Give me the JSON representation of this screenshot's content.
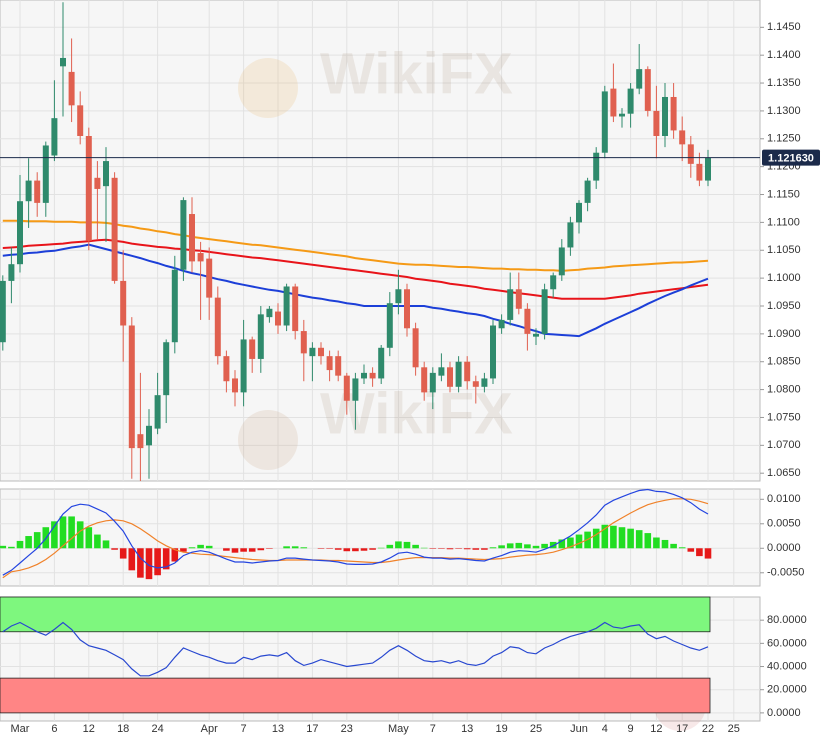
{
  "chart_data": {
    "type": "candlestick",
    "watermark": "WikiFX",
    "categories": [
      null,
      null,
      "Mar",
      null,
      null,
      null,
      "6",
      null,
      null,
      null,
      "12",
      null,
      null,
      null,
      "18",
      null,
      null,
      null,
      "24",
      null,
      null,
      null,
      null,
      null,
      "Apr",
      null,
      null,
      null,
      "7",
      null,
      null,
      null,
      "13",
      null,
      null,
      null,
      "17",
      null,
      null,
      null,
      "23",
      null,
      null,
      null,
      null,
      null,
      "May",
      null,
      null,
      null,
      "7",
      null,
      null,
      null,
      "13",
      null,
      null,
      null,
      "19",
      null,
      null,
      null,
      "25",
      null,
      null,
      null,
      null,
      "Jun",
      null,
      null,
      "4",
      null,
      null,
      "9",
      null,
      null,
      "12",
      null,
      null,
      "17",
      null,
      null,
      "22",
      null,
      null,
      "25"
    ],
    "open": [
      1.0885,
      1.0995,
      1.1025,
      1.1138,
      1.1175,
      1.1135,
      1.122,
      1.138,
      1.137,
      1.131,
      1.1255,
      1.118,
      1.1165,
      1.118,
      1.0995,
      1.0915,
      1.072,
      1.07,
      1.073,
      1.079,
      1.0885,
      1.1015,
      1.1115,
      1.1045,
      1.1035,
      1.0965,
      1.086,
      1.082,
      1.0795,
      1.089,
      1.0855,
      1.093,
      1.094,
      1.0915,
      1.0985,
      1.0905,
      1.086,
      1.0875,
      1.086,
      1.086,
      1.0825,
      1.078,
      1.082,
      1.083,
      1.082,
      1.0875,
      1.0955,
      1.098,
      1.091,
      1.084,
      1.0795,
      1.0825,
      1.084,
      1.0805,
      1.085,
      1.0815,
      1.0805,
      1.082,
      1.091,
      1.0925,
      1.098,
      1.0945,
      1.0895,
      1.09,
      1.098,
      1.1005,
      1.1055,
      1.11,
      1.1135,
      1.1175,
      1.1225,
      1.134,
      1.129,
      1.1295,
      1.134,
      1.1375,
      1.13,
      1.1255,
      1.1325,
      1.1265,
      1.124,
      1.1205,
      1.1175,
      null,
      null,
      null
    ],
    "high": [
      1.1005,
      1.1055,
      1.1185,
      1.1215,
      1.119,
      1.1245,
      1.1355,
      1.1495,
      1.143,
      1.1335,
      1.127,
      1.121,
      1.1235,
      1.119,
      1.105,
      1.093,
      1.083,
      1.0765,
      1.083,
      1.089,
      1.104,
      1.1145,
      1.1145,
      1.1065,
      1.1055,
      1.0985,
      1.087,
      1.0835,
      1.0925,
      1.0895,
      1.095,
      1.095,
      1.0955,
      1.099,
      1.099,
      1.0925,
      1.0885,
      1.0885,
      1.087,
      1.087,
      1.083,
      1.083,
      1.0845,
      1.084,
      1.088,
      1.0975,
      1.1015,
      1.099,
      1.092,
      1.085,
      1.084,
      1.0865,
      1.085,
      1.086,
      1.086,
      1.0825,
      1.083,
      1.0925,
      1.0935,
      1.101,
      1.101,
      1.0955,
      1.091,
      1.099,
      1.101,
      1.107,
      1.111,
      1.114,
      1.118,
      1.1235,
      1.1345,
      1.1385,
      1.1305,
      1.135,
      1.142,
      1.138,
      1.1345,
      1.135,
      1.135,
      1.129,
      1.1255,
      1.1225,
      1.123,
      null,
      null,
      null
    ],
    "low": [
      1.087,
      1.0955,
      1.101,
      1.109,
      1.111,
      1.111,
      1.121,
      1.129,
      1.128,
      1.124,
      1.105,
      1.107,
      1.1065,
      1.099,
      1.085,
      1.064,
      1.0636,
      1.064,
      1.072,
      1.074,
      1.0865,
      1.0995,
      1.101,
      1.0925,
      1.0925,
      1.0845,
      1.0795,
      1.077,
      1.077,
      1.083,
      1.083,
      1.092,
      1.09,
      1.0905,
      1.089,
      1.0815,
      1.0815,
      1.0845,
      1.0815,
      1.0815,
      1.0755,
      1.0728,
      1.081,
      1.0805,
      1.081,
      1.086,
      1.0935,
      1.0895,
      1.0825,
      1.078,
      1.0765,
      1.0815,
      1.0795,
      1.0795,
      1.08,
      1.0775,
      1.0795,
      1.081,
      1.09,
      1.0915,
      1.0935,
      1.087,
      1.088,
      1.089,
      1.0965,
      1.0995,
      1.104,
      1.108,
      1.112,
      1.116,
      1.1215,
      1.128,
      1.127,
      1.127,
      1.133,
      1.129,
      1.1215,
      1.1235,
      1.125,
      1.121,
      1.118,
      1.1165,
      1.1165,
      null,
      null,
      null
    ],
    "close": [
      1.0995,
      1.1025,
      1.1138,
      1.1175,
      1.1135,
      1.1238,
      1.1287,
      1.1395,
      1.131,
      1.1255,
      1.1067,
      1.116,
      1.121,
      1.0995,
      1.0915,
      1.0695,
      1.0695,
      1.0735,
      1.079,
      1.0885,
      1.1015,
      1.114,
      1.103,
      1.103,
      1.0965,
      1.086,
      1.0815,
      1.0795,
      1.089,
      1.0855,
      1.0935,
      1.0945,
      1.0915,
      1.0985,
      1.0905,
      1.0865,
      1.0875,
      1.086,
      1.0835,
      1.0825,
      1.078,
      1.082,
      1.083,
      1.082,
      1.0875,
      1.0955,
      1.098,
      1.091,
      1.084,
      1.0795,
      1.083,
      1.084,
      1.0805,
      1.085,
      1.0815,
      1.0805,
      1.082,
      1.0915,
      1.0925,
      1.098,
      1.0945,
      1.09,
      1.09,
      1.098,
      1.1005,
      1.1055,
      1.11,
      1.1135,
      1.1175,
      1.1225,
      1.1335,
      1.129,
      1.1295,
      1.134,
      1.1375,
      1.13,
      1.1255,
      1.1325,
      1.1265,
      1.124,
      1.1205,
      1.1175,
      1.1216,
      null,
      null,
      null
    ],
    "up_color": "#2f8a6c",
    "down_color": "#e0604f",
    "moving_averages": [
      {
        "color": "#f59a16",
        "values": [
          1.1103,
          1.1103,
          1.1103,
          1.1102,
          1.1102,
          1.1102,
          1.1101,
          1.1101,
          1.1101,
          1.11,
          1.11,
          1.11,
          1.1099,
          1.1097,
          1.1094,
          1.1092,
          1.1089,
          1.1087,
          1.1084,
          1.1082,
          1.1079,
          1.1077,
          1.1074,
          1.1072,
          1.107,
          1.1068,
          1.1066,
          1.1064,
          1.1062,
          1.106,
          1.1059,
          1.1057,
          1.1055,
          1.1053,
          1.1051,
          1.1049,
          1.1047,
          1.1045,
          1.1043,
          1.1041,
          1.1039,
          1.1036,
          1.1034,
          1.1032,
          1.103,
          1.1028,
          1.1026,
          1.1025,
          1.1024,
          1.1024,
          1.1023,
          1.1022,
          1.1021,
          1.102,
          1.102,
          1.1019,
          1.1018,
          1.1017,
          1.1017,
          1.1016,
          1.1016,
          1.1015,
          1.1015,
          1.1014,
          1.1014,
          1.1013,
          1.1014,
          1.1015,
          1.1017,
          1.1018,
          1.1019,
          1.1021,
          1.1022,
          1.1023,
          1.1024,
          1.1025,
          1.1026,
          1.1027,
          1.1028,
          1.1028,
          1.1029,
          1.103,
          1.1031,
          null,
          null,
          null
        ]
      },
      {
        "color": "#e8141a",
        "values": [
          1.1054,
          1.1055,
          1.1056,
          1.1058,
          1.1059,
          1.106,
          1.1061,
          1.1062,
          1.1064,
          1.1065,
          1.1066,
          1.1068,
          1.1069,
          1.1067,
          1.1065,
          1.1062,
          1.106,
          1.1058,
          1.1056,
          1.1055,
          1.1053,
          1.1052,
          1.105,
          1.1049,
          1.1047,
          1.1045,
          1.1043,
          1.1041,
          1.1039,
          1.1037,
          1.1036,
          1.1034,
          1.1032,
          1.103,
          1.1028,
          1.1026,
          1.1024,
          1.1022,
          1.102,
          1.1018,
          1.1016,
          1.1014,
          1.1012,
          1.101,
          1.1008,
          1.1006,
          1.1004,
          1.1002,
          1.0999,
          1.0997,
          1.0995,
          1.0993,
          1.099,
          1.0988,
          1.0986,
          1.0984,
          1.0981,
          1.0979,
          1.0977,
          1.0975,
          1.0973,
          1.0971,
          1.0969,
          1.0967,
          1.0965,
          1.0963,
          1.0963,
          1.0963,
          1.0963,
          1.0963,
          1.0963,
          1.0965,
          1.0967,
          1.0969,
          1.0972,
          1.0974,
          1.0976,
          1.0978,
          1.098,
          1.0982,
          1.0984,
          1.0986,
          1.0988,
          null,
          null,
          null
        ]
      },
      {
        "color": "#1c3fd8",
        "values": [
          1.104,
          1.1042,
          1.1043,
          1.1045,
          1.1046,
          1.1048,
          1.1049,
          1.1052,
          1.1055,
          1.1057,
          1.106,
          1.1056,
          1.1052,
          1.1048,
          1.1044,
          1.104,
          1.1036,
          1.1031,
          1.1027,
          1.1022,
          1.1018,
          1.1013,
          1.1009,
          1.1006,
          1.1002,
          1.0998,
          1.0995,
          1.0991,
          1.0988,
          1.0985,
          1.0982,
          1.0979,
          1.0977,
          1.0974,
          1.0971,
          1.0968,
          1.0965,
          1.0963,
          1.096,
          1.0958,
          1.0955,
          1.0953,
          1.095,
          1.095,
          1.095,
          1.095,
          1.095,
          1.095,
          1.095,
          1.095,
          1.0947,
          1.0945,
          1.0942,
          1.094,
          1.0937,
          1.0935,
          1.0932,
          1.0927,
          1.0923,
          1.0918,
          1.0914,
          1.0909,
          1.0905,
          1.09,
          1.0899,
          1.0898,
          1.0897,
          1.0896,
          1.0903,
          1.091,
          1.0918,
          1.0925,
          1.0932,
          1.0939,
          1.0946,
          1.0954,
          1.0961,
          1.0968,
          1.0974,
          1.098,
          1.0987,
          1.0993,
          1.0999,
          null,
          null,
          null
        ]
      }
    ],
    "last_price": {
      "value": 1.12163,
      "label": "1.121630"
    },
    "last_price_color": "#1b2a4a",
    "ylim": [
      1.0636,
      1.1499
    ],
    "yticks": [
      {
        "value": 1.145,
        "label": "1.1450"
      },
      {
        "value": 1.14,
        "label": "1.1400"
      },
      {
        "value": 1.135,
        "label": "1.1350"
      },
      {
        "value": 1.13,
        "label": "1.1300"
      },
      {
        "value": 1.125,
        "label": "1.1250"
      },
      {
        "value": 1.12,
        "label": "1.1200"
      },
      {
        "value": 1.115,
        "label": "1.1150"
      },
      {
        "value": 1.11,
        "label": "1.1100"
      },
      {
        "value": 1.105,
        "label": "1.1050"
      },
      {
        "value": 1.1,
        "label": "1.1000"
      },
      {
        "value": 1.095,
        "label": "1.0950"
      },
      {
        "value": 1.09,
        "label": "1.0900"
      },
      {
        "value": 1.085,
        "label": "1.0850"
      },
      {
        "value": 1.08,
        "label": "1.0800"
      },
      {
        "value": 1.075,
        "label": "1.0750"
      },
      {
        "value": 1.07,
        "label": "1.0700"
      },
      {
        "value": 1.065,
        "label": "1.0650"
      }
    ],
    "grid": true,
    "macd": {
      "type": "macd",
      "macd_color": "#2445e0",
      "signal_color": "#f0822a",
      "hist_up_color": "#22dd22",
      "hist_down_color": "#e61919",
      "macd": [
        -0.0055,
        -0.0045,
        -0.003,
        -0.0015,
        0.0,
        0.002,
        0.0045,
        0.007,
        0.0085,
        0.009,
        0.0088,
        0.008,
        0.0072,
        0.0055,
        0.0035,
        0.0005,
        -0.002,
        -0.0035,
        -0.004,
        -0.0038,
        -0.003,
        -0.0015,
        -0.0008,
        -0.0005,
        -0.0008,
        -0.0015,
        -0.0022,
        -0.0028,
        -0.0028,
        -0.003,
        -0.0028,
        -0.0026,
        -0.0025,
        -0.002,
        -0.002,
        -0.0022,
        -0.0024,
        -0.0025,
        -0.0026,
        -0.0028,
        -0.0032,
        -0.0033,
        -0.0033,
        -0.0032,
        -0.0028,
        -0.002,
        -0.001,
        -0.0008,
        -0.0012,
        -0.0018,
        -0.002,
        -0.002,
        -0.0022,
        -0.0021,
        -0.0023,
        -0.0025,
        -0.0026,
        -0.002,
        -0.0015,
        -0.0008,
        -0.0005,
        -0.0006,
        -0.0008,
        -0.0002,
        0.0005,
        0.0015,
        0.0025,
        0.0038,
        0.0052,
        0.0068,
        0.0088,
        0.0098,
        0.0105,
        0.0112,
        0.0118,
        0.012,
        0.0116,
        0.0115,
        0.011,
        0.0103,
        0.0093,
        0.008,
        0.007,
        null,
        null,
        null
      ],
      "signal": [
        -0.006,
        -0.0048,
        -0.0045,
        -0.004,
        -0.0033,
        -0.0023,
        -0.001,
        0.0005,
        0.002,
        0.0035,
        0.0045,
        0.0052,
        0.0056,
        0.0058,
        0.0056,
        0.005,
        0.004,
        0.0028,
        0.0015,
        0.0005,
        -0.0003,
        -0.0008,
        -0.001,
        -0.0012,
        -0.0013,
        -0.0015,
        -0.0017,
        -0.0019,
        -0.0021,
        -0.0023,
        -0.0024,
        -0.0025,
        -0.0025,
        -0.0024,
        -0.0024,
        -0.0024,
        -0.0024,
        -0.0024,
        -0.0025,
        -0.0025,
        -0.0026,
        -0.0027,
        -0.0028,
        -0.0029,
        -0.0029,
        -0.0027,
        -0.0024,
        -0.0021,
        -0.0019,
        -0.0019,
        -0.0019,
        -0.0019,
        -0.002,
        -0.002,
        -0.0021,
        -0.0022,
        -0.0023,
        -0.0022,
        -0.0021,
        -0.0018,
        -0.0016,
        -0.0014,
        -0.0013,
        -0.0011,
        -0.0008,
        -0.0003,
        0.0003,
        0.001,
        0.0018,
        0.0028,
        0.004,
        0.0052,
        0.0062,
        0.0072,
        0.0081,
        0.0089,
        0.0094,
        0.0098,
        0.0101,
        0.0101,
        0.01,
        0.0096,
        0.0091,
        null,
        null,
        null
      ],
      "histogram": [
        0.0005,
        0.0003,
        0.0015,
        0.0025,
        0.0033,
        0.0043,
        0.0055,
        0.0065,
        0.0065,
        0.0055,
        0.0043,
        0.0028,
        0.0016,
        -0.0003,
        -0.0021,
        -0.0045,
        -0.006,
        -0.0063,
        -0.0055,
        -0.0043,
        -0.0027,
        -0.0007,
        0.0002,
        0.0007,
        0.0005,
        0.0,
        -0.0005,
        -0.0009,
        -0.0007,
        -0.0007,
        -0.0004,
        -0.0001,
        0.0,
        0.0004,
        0.0004,
        0.0002,
        0.0,
        -0.0001,
        -0.0001,
        -0.0003,
        -0.0006,
        -0.0006,
        -0.0005,
        -0.0003,
        0.0001,
        0.0007,
        0.0014,
        0.0013,
        0.0007,
        0.0001,
        -0.0001,
        -0.0001,
        -0.0002,
        -0.0001,
        -0.0002,
        -0.0003,
        -0.0003,
        0.0002,
        0.0006,
        0.001,
        0.0011,
        0.0008,
        0.0005,
        0.0009,
        0.0013,
        0.0018,
        0.0022,
        0.0028,
        0.0034,
        0.004,
        0.0048,
        0.0046,
        0.0043,
        0.004,
        0.0037,
        0.0031,
        0.0022,
        0.0017,
        0.0009,
        0.0002,
        -0.0007,
        -0.0016,
        -0.0021,
        null,
        null,
        null
      ],
      "ylim": [
        -0.0077,
        0.0121
      ],
      "yticks": [
        {
          "value": 0.01,
          "label": "0.0100"
        },
        {
          "value": 0.005,
          "label": "0.0050"
        },
        {
          "value": 0,
          "label": "0.0000"
        },
        {
          "value": -0.005,
          "label": "-0.0050"
        }
      ]
    },
    "rsi": {
      "type": "line",
      "color": "#2848d0",
      "values": [
        70,
        75,
        78,
        74,
        70,
        67,
        72,
        78,
        72,
        63,
        58,
        56,
        54,
        50,
        46,
        38,
        32,
        32,
        35,
        39,
        48,
        56,
        53,
        50,
        48,
        45,
        43,
        43,
        48,
        46,
        49,
        50,
        49,
        52,
        45,
        41,
        43,
        46,
        44,
        42,
        40,
        41,
        42,
        43,
        48,
        54,
        58,
        54,
        49,
        45,
        44,
        45,
        43,
        45,
        42,
        41,
        43,
        49,
        52,
        57,
        56,
        52,
        51,
        56,
        59,
        63,
        66,
        68,
        70,
        73,
        78,
        74,
        73,
        75,
        76,
        68,
        64,
        66,
        62,
        59,
        56,
        54,
        57,
        null,
        null,
        null
      ],
      "bands": [
        {
          "range": [
            70,
            100
          ],
          "color": "#7ef77e"
        },
        {
          "range": [
            0,
            30
          ],
          "color": "#ff8585"
        }
      ],
      "ylim": [
        -7,
        100
      ],
      "yticks": [
        {
          "value": 80,
          "label": "80.0000"
        },
        {
          "value": 60,
          "label": "60.0000"
        },
        {
          "value": 40,
          "label": "40.0000"
        },
        {
          "value": 20,
          "label": "20.0000"
        },
        {
          "value": 0,
          "label": "0.0000"
        }
      ]
    }
  }
}
